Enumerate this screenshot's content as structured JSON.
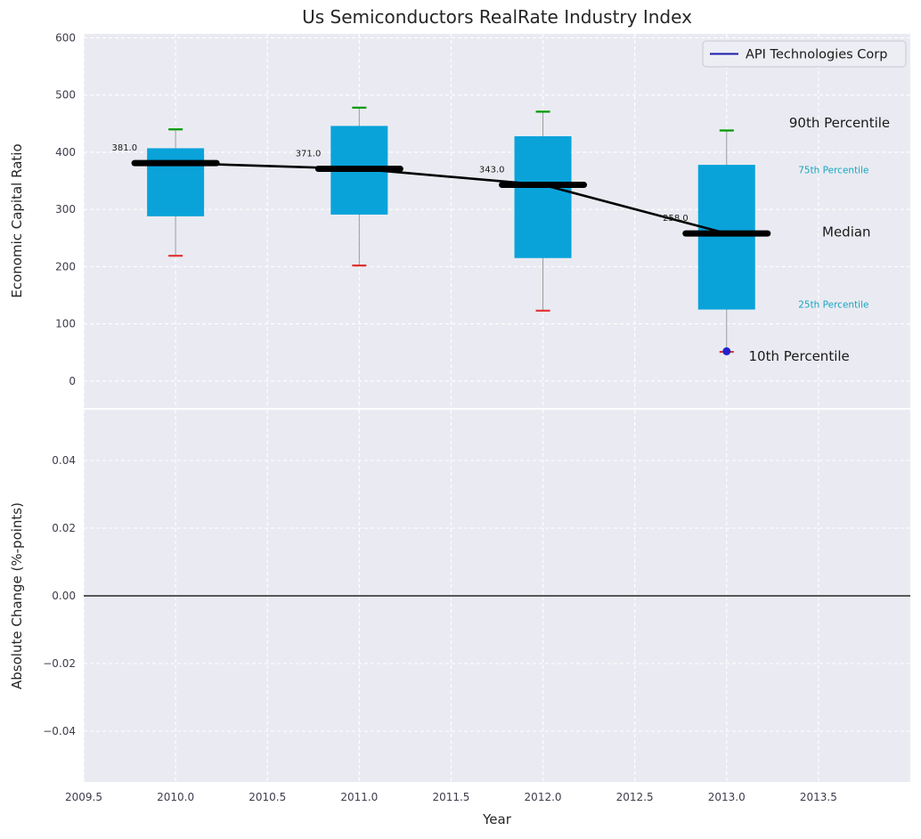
{
  "figure": {
    "title": "Us Semiconductors RealRate Industry Index"
  },
  "legend": {
    "label": "API Technologies Corp",
    "line_color": "#1a1aad"
  },
  "colors": {
    "plot_bg": "#eaebf2",
    "grid": "#ffffff",
    "box_fill": "#09a3da",
    "whisker": "#999999",
    "cap_top": "#009a00",
    "cap_bottom": "#e03030",
    "median_line": "#000000",
    "company_marker": "#2323cc",
    "tick_label": "#3d3d4d",
    "axis_label": "#262626",
    "title_color": "#262626",
    "percentile_accent": "#18a5c0",
    "zero_line": "#000000",
    "legend_bg": "#edeef4",
    "legend_border": "#c8c8d0"
  },
  "chart_data": [
    {
      "type": "boxplot",
      "title": "Us Semiconductors RealRate Industry Index",
      "ylabel": "Economic Capital Ratio",
      "xlim": [
        2009.5,
        2014.0
      ],
      "ylim": [
        -47,
        607
      ],
      "grid": true,
      "legend_position": "upper right",
      "legend_entries": [
        "API Technologies Corp"
      ],
      "yticks": {
        "values": [
          0,
          100,
          200,
          300,
          400,
          500,
          600
        ],
        "labels": [
          "0",
          "100",
          "200",
          "300",
          "400",
          "500",
          "600"
        ]
      },
      "boxes": [
        {
          "x": 2010,
          "p10": 219,
          "p25": 288,
          "median": 381,
          "p75": 407,
          "p90": 440
        },
        {
          "x": 2011,
          "p10": 202,
          "p25": 291,
          "median": 371,
          "p75": 446,
          "p90": 478
        },
        {
          "x": 2012,
          "p10": 123,
          "p25": 215,
          "median": 343,
          "p75": 428,
          "p90": 471
        },
        {
          "x": 2013,
          "p10": 51,
          "p25": 125,
          "median": 258,
          "p75": 378,
          "p90": 438
        }
      ],
      "median_series": {
        "name": "Median",
        "x": [
          2010,
          2011,
          2012,
          2013
        ],
        "y": [
          381,
          371,
          343,
          258
        ],
        "labels": [
          "381.0",
          "371.0",
          "343.0",
          "258.0"
        ]
      },
      "company_point": {
        "name": "API Technologies Corp",
        "x": 2013,
        "y": 52
      },
      "annotations": [
        {
          "text": "90th Percentile",
          "x": 2013.34,
          "y": 452,
          "size": 15,
          "color": "#1a1a1a"
        },
        {
          "text": "75th Percentile",
          "x": 2013.39,
          "y": 369,
          "size": 10.5,
          "color": "#18a5c0"
        },
        {
          "text": "Median",
          "x": 2013.52,
          "y": 261,
          "size": 15,
          "color": "#1a1a1a"
        },
        {
          "text": "25th Percentile",
          "x": 2013.39,
          "y": 134,
          "size": 10.5,
          "color": "#18a5c0"
        },
        {
          "text": "10th Percentile",
          "x": 2013.12,
          "y": 44,
          "size": 15,
          "color": "#1a1a1a"
        }
      ]
    },
    {
      "type": "line",
      "xlabel": "Year",
      "ylabel": "Absolute Change (%-points)",
      "xlim": [
        2009.5,
        2014.0
      ],
      "ylim": [
        -0.055,
        0.055
      ],
      "grid": true,
      "zero_line_y": 0.0,
      "series": [],
      "xticks": {
        "values": [
          2009.5,
          2010.0,
          2010.5,
          2011.0,
          2011.5,
          2012.0,
          2012.5,
          2013.0,
          2013.5
        ],
        "labels": [
          "2009.5",
          "2010.0",
          "2010.5",
          "2011.0",
          "2011.5",
          "2012.0",
          "2012.5",
          "2013.0",
          "2013.5"
        ]
      },
      "yticks": {
        "values": [
          0.04,
          0.02,
          0.0,
          -0.02,
          -0.04
        ],
        "labels": [
          "0.04",
          "0.02",
          "0.00",
          "−0.02",
          "−0.04"
        ]
      }
    }
  ]
}
